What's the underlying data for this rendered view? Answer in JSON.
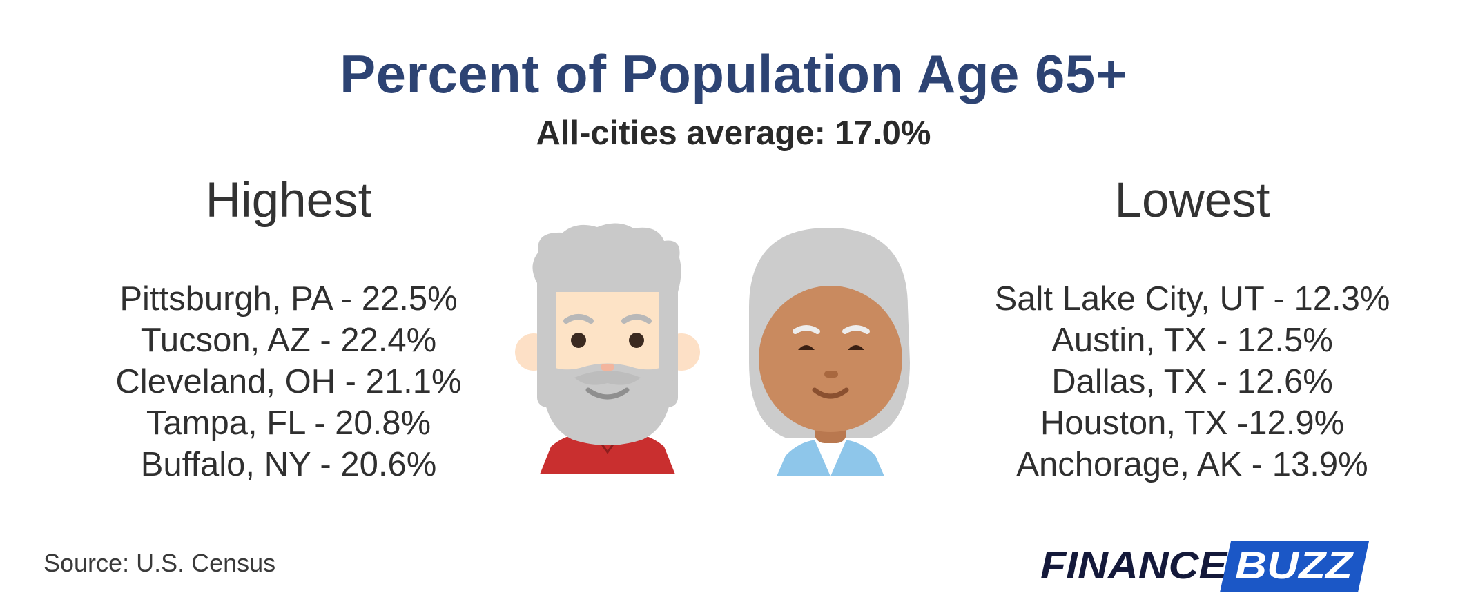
{
  "title": "Percent of Population Age 65+",
  "subtitle": "All-cities average: 17.0%",
  "highest": {
    "heading": "Highest",
    "items": [
      "Pittsburgh, PA - 22.5%",
      "Tucson, AZ - 22.4%",
      "Cleveland, OH - 21.1%",
      "Tampa, FL - 20.8%",
      "Buffalo, NY - 20.6%"
    ]
  },
  "lowest": {
    "heading": "Lowest",
    "items": [
      "Salt Lake City, UT - 12.3%",
      "Austin, TX - 12.5%",
      "Dallas, TX - 12.6%",
      "Houston, TX -12.9%",
      "Anchorage, AK - 13.9%"
    ]
  },
  "source": "Source: U.S. Census",
  "logo": {
    "word1": "FINANCE",
    "word2": "BUZZ",
    "navy": "#14193a",
    "blue": "#1b57c6"
  },
  "colors": {
    "title": "#2d4373",
    "text": "#2f2f2f"
  }
}
